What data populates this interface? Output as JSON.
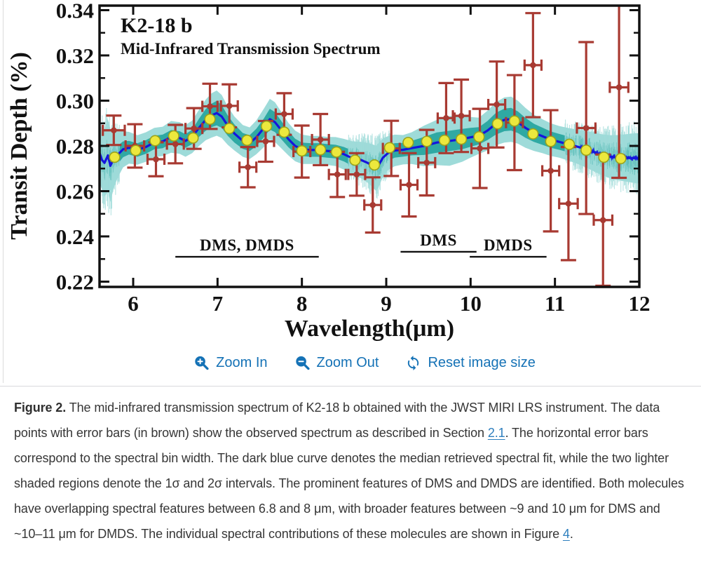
{
  "page": {
    "background": "#ffffff",
    "divider_color": "#d9d9dc",
    "caption_link_color": "#2e7fbe",
    "controls_color": "#1572b6"
  },
  "figure_viewer": {
    "controls": {
      "zoom_in": {
        "icon": "magnifier-plus-icon",
        "label": "Zoom In"
      },
      "zoom_out": {
        "icon": "magnifier-minus-icon",
        "label": "Zoom Out"
      },
      "reset": {
        "icon": "refresh-icon",
        "label": "Reset image size"
      }
    },
    "caption": {
      "segments": [
        {
          "style": "bold",
          "text": "Figure 2."
        },
        {
          "style": "plain",
          "text": " The mid-infrared transmission spectrum of K2-18 b obtained with the JWST MIRI LRS instrument. The data points with error bars (in brown) show the observed spectrum as described in Section "
        },
        {
          "style": "link",
          "text": "2.1"
        },
        {
          "style": "plain",
          "text": ". The horizontal error bars correspond to the spectral bin width. The dark blue curve denotes the median retrieved spectral fit, while the two lighter shaded regions denote the 1σ and 2σ intervals. The prominent features of DMS and DMDS are identified. Both molecules have overlapping spectral features between 6.8 and 8 μm, with broader features between ~9 and 10 μm for DMS and ~10–11 μm for DMDS. The individual spectral contributions of these molecules are shown in Figure "
        },
        {
          "style": "link",
          "text": "4"
        },
        {
          "style": "plain",
          "text": "."
        }
      ]
    }
  },
  "chart_data": {
    "type": "scatter",
    "title": "K2-18 b",
    "subtitle": "Mid-Infrared Transmission Spectrum",
    "xlabel": "Wavelength(μm)",
    "ylabel": "Transit Depth (%)",
    "xlim": [
      5.6,
      12.0
    ],
    "ylim": [
      0.2175,
      0.342
    ],
    "x_ticks": [
      6,
      7,
      8,
      9,
      10,
      11,
      12
    ],
    "y_ticks": [
      0.22,
      0.24,
      0.26,
      0.28,
      0.3,
      0.32,
      0.34
    ],
    "y_minor_step": 0.01,
    "grid": false,
    "legend": "none",
    "colors": {
      "observed": "#a83a32",
      "model_line": "#1515dd",
      "band_1sigma": "#2fa9a3",
      "band_2sigma": "#9edbd9",
      "model_binned_fill": "#ece83d",
      "model_binned_edge": "#9aa31d",
      "axes": "#111111"
    },
    "annotations": [
      {
        "label": "DMS, DMDS",
        "x_start": 6.5,
        "x_end": 8.2,
        "line_depth": 0.231
      },
      {
        "label": "DMS",
        "x_start": 9.17,
        "x_end": 10.07,
        "line_depth": 0.2332
      },
      {
        "label": "DMDS",
        "x_start": 9.99,
        "x_end": 10.9,
        "line_depth": 0.231
      }
    ],
    "observed_series": {
      "name": "Observed spectrum (JWST MIRI LRS), points = [wavelength_um, transit_depth_pct, x_err, y_err]",
      "points": [
        [
          5.77,
          0.2869,
          0.13,
          0.0065
        ],
        [
          6.02,
          0.28,
          0.11,
          0.0096
        ],
        [
          6.27,
          0.2741,
          0.1,
          0.0075
        ],
        [
          6.5,
          0.2808,
          0.1,
          0.0085
        ],
        [
          6.72,
          0.2877,
          0.1,
          0.009
        ],
        [
          6.91,
          0.2975,
          0.09,
          0.01
        ],
        [
          7.14,
          0.2977,
          0.1,
          0.0095
        ],
        [
          7.36,
          0.2706,
          0.1,
          0.0089
        ],
        [
          7.57,
          0.282,
          0.1,
          0.009
        ],
        [
          7.79,
          0.2941,
          0.1,
          0.0092
        ],
        [
          8.0,
          0.2775,
          0.1,
          0.0115
        ],
        [
          8.22,
          0.2828,
          0.1,
          0.0113
        ],
        [
          8.42,
          0.2674,
          0.1,
          0.01
        ],
        [
          8.65,
          0.2674,
          0.1,
          0.0094
        ],
        [
          8.84,
          0.2539,
          0.1,
          0.0122
        ],
        [
          9.06,
          0.2789,
          0.1,
          0.0122
        ],
        [
          9.27,
          0.2628,
          0.1,
          0.014
        ],
        [
          9.48,
          0.2726,
          0.1,
          0.0145
        ],
        [
          9.71,
          0.2923,
          0.1,
          0.0155
        ],
        [
          9.89,
          0.2933,
          0.1,
          0.016
        ],
        [
          10.11,
          0.2789,
          0.1,
          0.0175
        ],
        [
          10.31,
          0.2983,
          0.1,
          0.019
        ],
        [
          10.52,
          0.2903,
          0.1,
          0.021
        ],
        [
          10.74,
          0.3157,
          0.1,
          0.023
        ],
        [
          10.95,
          0.269,
          0.1,
          0.0268
        ],
        [
          11.16,
          0.2545,
          0.11,
          0.025
        ],
        [
          11.37,
          0.2879,
          0.11,
          0.038
        ],
        [
          11.57,
          0.2472,
          0.11,
          0.029
        ],
        [
          11.76,
          0.3059,
          0.11,
          0.04
        ]
      ]
    },
    "model_binned": {
      "name": "Binned median model (yellow points)",
      "points": [
        [
          5.78,
          0.275
        ],
        [
          6.03,
          0.278
        ],
        [
          6.26,
          0.2823
        ],
        [
          6.48,
          0.2844
        ],
        [
          6.71,
          0.2835
        ],
        [
          6.91,
          0.2918
        ],
        [
          7.14,
          0.2877
        ],
        [
          7.35,
          0.2825
        ],
        [
          7.58,
          0.2887
        ],
        [
          7.79,
          0.2861
        ],
        [
          8.0,
          0.2778
        ],
        [
          8.22,
          0.2783
        ],
        [
          8.41,
          0.2773
        ],
        [
          8.63,
          0.2737
        ],
        [
          8.86,
          0.2716
        ],
        [
          9.04,
          0.2792
        ],
        [
          9.26,
          0.2815
        ],
        [
          9.48,
          0.282
        ],
        [
          9.69,
          0.2825
        ],
        [
          9.89,
          0.283
        ],
        [
          10.1,
          0.284
        ],
        [
          10.32,
          0.2898
        ],
        [
          10.52,
          0.291
        ],
        [
          10.74,
          0.2853
        ],
        [
          10.95,
          0.282
        ],
        [
          11.17,
          0.2807
        ],
        [
          11.37,
          0.2781
        ],
        [
          11.58,
          0.275
        ],
        [
          11.78,
          0.2744
        ]
      ]
    },
    "model_series": {
      "name": "Median retrieved spectral fit with 1-sigma and 2-sigma half-widths, curve = [wavelength_um, depth_pct, s1, s2]",
      "curve": [
        [
          5.6,
          0.277,
          0.005,
          0.013
        ],
        [
          5.63,
          0.2738,
          0.005,
          0.013
        ],
        [
          5.66,
          0.2725,
          0.006,
          0.015
        ],
        [
          5.7,
          0.2758,
          0.006,
          0.016
        ],
        [
          5.73,
          0.2712,
          0.006,
          0.016
        ],
        [
          5.77,
          0.2745,
          0.005,
          0.013
        ],
        [
          5.82,
          0.2762,
          0.004,
          0.01
        ],
        [
          5.88,
          0.2785,
          0.0035,
          0.008
        ],
        [
          5.95,
          0.2792,
          0.003,
          0.007
        ],
        [
          6.05,
          0.2782,
          0.003,
          0.0065
        ],
        [
          6.15,
          0.2795,
          0.003,
          0.0065
        ],
        [
          6.25,
          0.2815,
          0.003,
          0.0065
        ],
        [
          6.35,
          0.282,
          0.003,
          0.0065
        ],
        [
          6.45,
          0.284,
          0.003,
          0.007
        ],
        [
          6.55,
          0.2835,
          0.003,
          0.007
        ],
        [
          6.62,
          0.2822,
          0.003,
          0.007
        ],
        [
          6.7,
          0.284,
          0.0032,
          0.0072
        ],
        [
          6.78,
          0.288,
          0.004,
          0.008
        ],
        [
          6.86,
          0.2915,
          0.0048,
          0.009
        ],
        [
          6.93,
          0.2935,
          0.0052,
          0.0098
        ],
        [
          6.99,
          0.2945,
          0.0054,
          0.01
        ],
        [
          7.05,
          0.293,
          0.005,
          0.0095
        ],
        [
          7.12,
          0.289,
          0.0045,
          0.0085
        ],
        [
          7.2,
          0.2855,
          0.004,
          0.0075
        ],
        [
          7.3,
          0.2822,
          0.0035,
          0.007
        ],
        [
          7.38,
          0.2812,
          0.0035,
          0.007
        ],
        [
          7.46,
          0.2838,
          0.0038,
          0.0075
        ],
        [
          7.55,
          0.288,
          0.0042,
          0.0085
        ],
        [
          7.62,
          0.2918,
          0.0046,
          0.009
        ],
        [
          7.68,
          0.2905,
          0.0044,
          0.0088
        ],
        [
          7.76,
          0.2868,
          0.004,
          0.008
        ],
        [
          7.84,
          0.283,
          0.0036,
          0.0072
        ],
        [
          7.92,
          0.28,
          0.0032,
          0.0068
        ],
        [
          8.0,
          0.2785,
          0.003,
          0.0065
        ],
        [
          8.1,
          0.2782,
          0.003,
          0.0062
        ],
        [
          8.2,
          0.2782,
          0.003,
          0.0062
        ],
        [
          8.3,
          0.2778,
          0.003,
          0.0062
        ],
        [
          8.4,
          0.2775,
          0.003,
          0.0064
        ],
        [
          8.5,
          0.2763,
          0.0032,
          0.0068
        ],
        [
          8.6,
          0.2745,
          0.0034,
          0.0075
        ],
        [
          8.7,
          0.2738,
          0.0036,
          0.008
        ],
        [
          8.78,
          0.2725,
          0.0038,
          0.0088
        ],
        [
          8.84,
          0.2712,
          0.004,
          0.0095
        ],
        [
          8.88,
          0.27,
          0.0042,
          0.01
        ],
        [
          8.92,
          0.2722,
          0.004,
          0.0095
        ],
        [
          8.96,
          0.2748,
          0.0038,
          0.0085
        ],
        [
          9.02,
          0.2768,
          0.0034,
          0.0075
        ],
        [
          9.1,
          0.278,
          0.0032,
          0.007
        ],
        [
          9.2,
          0.2783,
          0.003,
          0.0065
        ],
        [
          9.3,
          0.279,
          0.0032,
          0.007
        ],
        [
          9.45,
          0.28,
          0.004,
          0.009
        ],
        [
          9.6,
          0.2815,
          0.0045,
          0.01
        ],
        [
          9.75,
          0.2822,
          0.0045,
          0.011
        ],
        [
          9.9,
          0.283,
          0.0045,
          0.01
        ],
        [
          10.0,
          0.2838,
          0.0042,
          0.009
        ],
        [
          10.1,
          0.2845,
          0.0038,
          0.008
        ],
        [
          10.2,
          0.2868,
          0.0042,
          0.0088
        ],
        [
          10.3,
          0.2898,
          0.0048,
          0.0095
        ],
        [
          10.4,
          0.2915,
          0.005,
          0.01
        ],
        [
          10.48,
          0.2918,
          0.005,
          0.01
        ],
        [
          10.56,
          0.2905,
          0.0048,
          0.0095
        ],
        [
          10.65,
          0.288,
          0.0044,
          0.0088
        ],
        [
          10.75,
          0.2858,
          0.004,
          0.008
        ],
        [
          10.85,
          0.2843,
          0.0038,
          0.0075
        ],
        [
          10.95,
          0.2828,
          0.0036,
          0.0072
        ],
        [
          11.05,
          0.2818,
          0.0035,
          0.007
        ],
        [
          11.15,
          0.2808,
          0.0035,
          0.0072
        ],
        [
          11.25,
          0.2798,
          0.0036,
          0.0075
        ],
        [
          11.35,
          0.2788,
          0.0038,
          0.008
        ],
        [
          11.45,
          0.2775,
          0.004,
          0.0085
        ],
        [
          11.55,
          0.2762,
          0.0042,
          0.009
        ],
        [
          11.65,
          0.2752,
          0.0044,
          0.0095
        ],
        [
          11.75,
          0.2748,
          0.0046,
          0.01
        ],
        [
          11.85,
          0.2747,
          0.0048,
          0.0105
        ],
        [
          11.95,
          0.2746,
          0.005,
          0.011
        ],
        [
          12.0,
          0.2746,
          0.005,
          0.011
        ]
      ]
    }
  }
}
